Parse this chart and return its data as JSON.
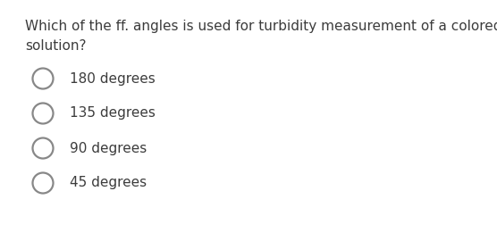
{
  "question_line1": "Which of the ff. angles is used for turbidity measurement of a colored",
  "question_line2": "solution?",
  "options": [
    "180 degrees",
    "135 degrees",
    "90 degrees",
    "45 degrees"
  ],
  "background_color": "#ffffff",
  "question_color": "#3c3c3c",
  "option_color": "#3c3c3c",
  "circle_edge_color": "#888888",
  "question_fontsize": 11.0,
  "option_fontsize": 11.0,
  "fig_width": 5.56,
  "fig_height": 2.61,
  "dpi": 100
}
